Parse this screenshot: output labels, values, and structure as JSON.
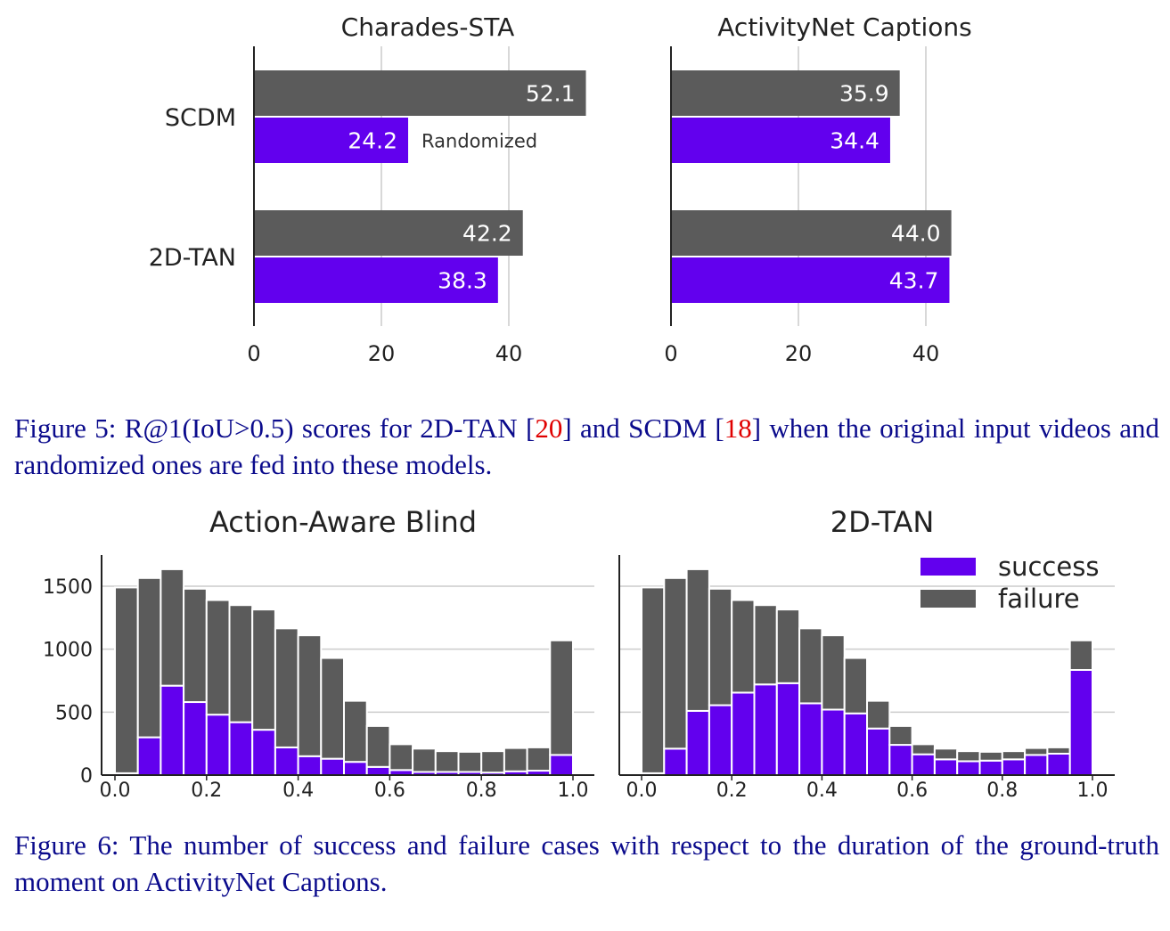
{
  "colors": {
    "original": "#5b5b5b",
    "randomized": "#6200ee",
    "success": "#6200ee",
    "failure": "#5b5b5b",
    "grid": "#cccccc",
    "caption_text": "#0b0b8c",
    "citation": "#e00000"
  },
  "figure5": {
    "caption": {
      "prefix": "Figure 5:",
      "text_a": "R@1(IoU>0.5) scores for 2D-TAN [",
      "ref_a": "20",
      "text_b": "] and SCDM [",
      "ref_b": "18",
      "text_c": "] when the original input videos and randomized ones are fed into these models."
    },
    "chart_data": [
      {
        "type": "bar",
        "orientation": "horizontal",
        "title": "Charades-STA",
        "categories": [
          "SCDM",
          "2D-TAN"
        ],
        "series": [
          {
            "values": [
              52.1,
              42.2
            ],
            "color": "#5b5b5b"
          },
          {
            "name": "Randomized",
            "values": [
              24.2,
              38.3
            ],
            "color": "#6200ee"
          }
        ],
        "data_labels": [
          [
            "52.1",
            "42.2"
          ],
          [
            "24.2",
            "38.3"
          ]
        ],
        "annotation": "Randomized",
        "xticks": [
          0,
          20,
          40
        ],
        "xlim": [
          0,
          55
        ],
        "grid": "vertical"
      },
      {
        "type": "bar",
        "orientation": "horizontal",
        "title": "ActivityNet Captions",
        "categories": [
          "SCDM",
          "2D-TAN"
        ],
        "series": [
          {
            "values": [
              35.9,
              44.0
            ],
            "color": "#5b5b5b"
          },
          {
            "values": [
              34.4,
              43.7
            ],
            "color": "#6200ee"
          }
        ],
        "data_labels": [
          [
            "35.9",
            "44.0"
          ],
          [
            "34.4",
            "43.7"
          ]
        ],
        "xticks": [
          0,
          20,
          40
        ],
        "xlim": [
          0,
          55
        ],
        "grid": "vertical"
      }
    ]
  },
  "figure6": {
    "caption": {
      "prefix": "Figure 6:",
      "text": "The number of success and failure cases with respect to the duration of the ground-truth moment on ActivityNet Captions."
    },
    "chart_data": [
      {
        "type": "bar",
        "stacked": true,
        "title": "Action-Aware Blind",
        "x": [
          0.025,
          0.075,
          0.125,
          0.175,
          0.225,
          0.275,
          0.325,
          0.375,
          0.425,
          0.475,
          0.525,
          0.575,
          0.625,
          0.675,
          0.725,
          0.775,
          0.825,
          0.875,
          0.925,
          0.975
        ],
        "series": [
          {
            "name": "success",
            "values": [
              15,
              300,
              710,
              580,
              480,
              420,
              360,
              220,
              150,
              130,
              105,
              65,
              40,
              25,
              25,
              25,
              20,
              30,
              35,
              160
            ]
          },
          {
            "name": "failure",
            "values": [
              1475,
              1265,
              925,
              900,
              910,
              930,
              955,
              945,
              960,
              800,
              485,
              325,
              205,
              185,
              165,
              160,
              170,
              185,
              185,
              910
            ]
          }
        ],
        "xticks": [
          "0.0",
          "0.2",
          "0.4",
          "0.6",
          "0.8",
          "1.0"
        ],
        "yticks": [
          "0",
          "500",
          "1000",
          "1500"
        ],
        "xlim": [
          0,
          1.05
        ],
        "ylim": [
          0,
          1720
        ],
        "grid": "horizontal"
      },
      {
        "type": "bar",
        "stacked": true,
        "title": "2D-TAN",
        "x": [
          0.025,
          0.075,
          0.125,
          0.175,
          0.225,
          0.275,
          0.325,
          0.375,
          0.425,
          0.475,
          0.525,
          0.575,
          0.625,
          0.675,
          0.725,
          0.775,
          0.825,
          0.875,
          0.925,
          0.975
        ],
        "series": [
          {
            "name": "success",
            "values": [
              15,
              210,
              510,
              555,
              655,
              720,
              730,
              570,
              520,
              490,
              370,
              240,
              165,
              125,
              110,
              115,
              125,
              160,
              170,
              835
            ]
          },
          {
            "name": "failure",
            "values": [
              1475,
              1355,
              1125,
              925,
              735,
              630,
              585,
              595,
              590,
              440,
              220,
              150,
              80,
              85,
              80,
              70,
              65,
              55,
              50,
              235
            ]
          }
        ],
        "xticks": [
          "0.0",
          "0.2",
          "0.4",
          "0.6",
          "0.8",
          "1.0"
        ],
        "yticks": [
          "0",
          "500",
          "1000",
          "1500"
        ],
        "xlim": [
          0,
          1.05
        ],
        "ylim": [
          0,
          1720
        ],
        "grid": "horizontal",
        "legend": {
          "position": "top-right",
          "entries": [
            "success",
            "failure"
          ]
        }
      }
    ]
  }
}
